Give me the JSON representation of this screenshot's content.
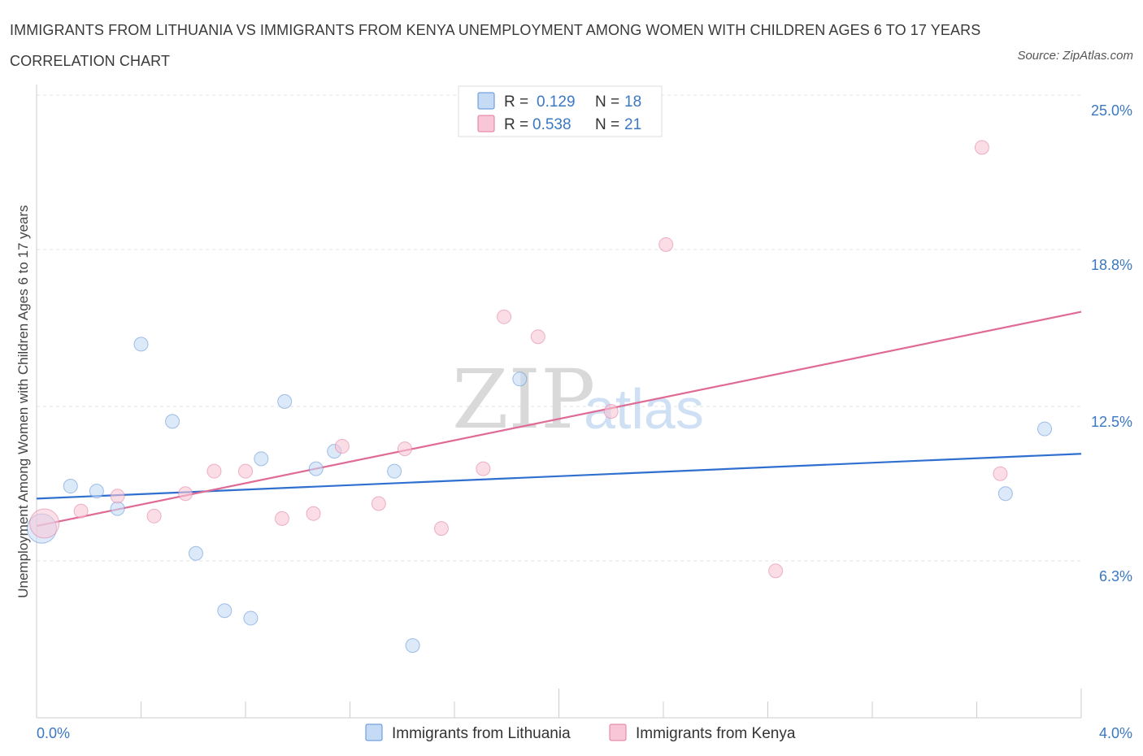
{
  "chart_data": {
    "type": "scatter",
    "title": "IMMIGRANTS FROM LITHUANIA VS IMMIGRANTS FROM KENYA UNEMPLOYMENT AMONG WOMEN WITH CHILDREN AGES 6 TO 17 YEARS CORRELATION CHART",
    "source": "Source: ZipAtlas.com",
    "ylabel": "Unemployment Among Women with Children Ages 6 to 17 years",
    "xlabel": "",
    "xlim": [
      0.0,
      4.0
    ],
    "ylim": [
      0.0,
      25.0
    ],
    "x_tick_labels": [
      "0.0%",
      "4.0%"
    ],
    "y_ticks": [
      6.3,
      12.5,
      18.8,
      25.0
    ],
    "y_tick_labels": [
      "6.3%",
      "12.5%",
      "18.8%",
      "25.0%"
    ],
    "grid": true,
    "legend": {
      "position": "top-center",
      "r_label": "R =",
      "n_label": "N =",
      "entries": [
        {
          "r": "0.129",
          "n": "18"
        },
        {
          "r": "0.538",
          "n": "21"
        }
      ]
    },
    "watermark": {
      "zip": "ZIP",
      "atlas": "atlas"
    },
    "series": [
      {
        "name": "Immigrants from Lithuania",
        "color": "#5b8fd6",
        "fill": "#c5daf5",
        "trend": {
          "x": [
            0.0,
            4.0
          ],
          "y": [
            8.8,
            10.6
          ]
        },
        "points": [
          {
            "x": 0.02,
            "y": 7.6,
            "big": true
          },
          {
            "x": 0.13,
            "y": 9.3
          },
          {
            "x": 0.23,
            "y": 9.1
          },
          {
            "x": 0.31,
            "y": 8.4
          },
          {
            "x": 0.4,
            "y": 15.0
          },
          {
            "x": 0.52,
            "y": 11.9
          },
          {
            "x": 0.61,
            "y": 6.6
          },
          {
            "x": 0.72,
            "y": 4.3
          },
          {
            "x": 0.82,
            "y": 4.0
          },
          {
            "x": 0.86,
            "y": 10.4
          },
          {
            "x": 0.95,
            "y": 12.7
          },
          {
            "x": 1.07,
            "y": 10.0
          },
          {
            "x": 1.14,
            "y": 10.7
          },
          {
            "x": 1.37,
            "y": 9.9
          },
          {
            "x": 1.44,
            "y": 2.9
          },
          {
            "x": 1.85,
            "y": 13.6
          },
          {
            "x": 3.71,
            "y": 9.0
          },
          {
            "x": 3.86,
            "y": 11.6
          }
        ]
      },
      {
        "name": "Immigrants from Kenya",
        "color": "#e07aa0",
        "fill": "#f8c6d6",
        "trend": {
          "x": [
            0.0,
            4.0
          ],
          "y": [
            7.7,
            16.3
          ]
        },
        "points": [
          {
            "x": 0.03,
            "y": 7.8,
            "big": true
          },
          {
            "x": 0.17,
            "y": 8.3
          },
          {
            "x": 0.31,
            "y": 8.9
          },
          {
            "x": 0.45,
            "y": 8.1
          },
          {
            "x": 0.57,
            "y": 9.0
          },
          {
            "x": 0.68,
            "y": 9.9
          },
          {
            "x": 0.8,
            "y": 9.9
          },
          {
            "x": 0.94,
            "y": 8.0
          },
          {
            "x": 1.06,
            "y": 8.2
          },
          {
            "x": 1.17,
            "y": 10.9
          },
          {
            "x": 1.31,
            "y": 8.6
          },
          {
            "x": 1.41,
            "y": 10.8
          },
          {
            "x": 1.55,
            "y": 7.6
          },
          {
            "x": 1.71,
            "y": 10.0
          },
          {
            "x": 1.79,
            "y": 16.1
          },
          {
            "x": 1.92,
            "y": 15.3
          },
          {
            "x": 2.2,
            "y": 12.3
          },
          {
            "x": 2.41,
            "y": 19.0
          },
          {
            "x": 2.83,
            "y": 5.9
          },
          {
            "x": 3.62,
            "y": 22.9
          },
          {
            "x": 3.69,
            "y": 9.8
          }
        ]
      }
    ]
  }
}
